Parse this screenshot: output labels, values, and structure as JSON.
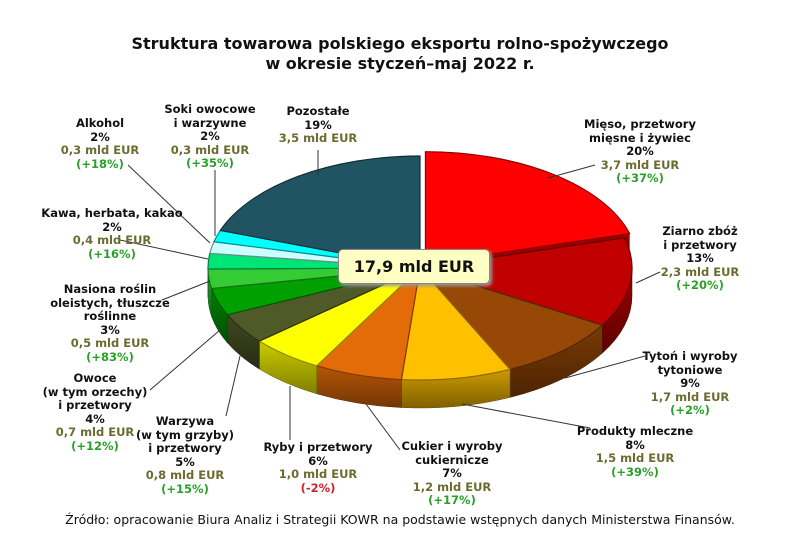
{
  "chart_data": {
    "type": "pie",
    "title": "Struktura towarowa polskiego eksportu rolno-spożywczego",
    "subtitle": "w okresie styczeń–maj 2022 r.",
    "total_label": "17,9 mld EUR",
    "unit": "mld EUR",
    "three_d": true,
    "slices": [
      {
        "name": "Mięso, przetwory mięsne i żywiec",
        "lines": [
          "Mięso, przetwory",
          "mięsne i żywiec"
        ],
        "percent": "20%",
        "value": 3.7,
        "value_label": "3,7 mld EUR",
        "change": "(+37%)",
        "color": "#ff0000",
        "exploded": true
      },
      {
        "name": "Ziarno zbóż i przetwory",
        "lines": [
          "Ziarno zbóż",
          "i przetwory"
        ],
        "percent": "13%",
        "value": 2.3,
        "value_label": "2,3 mld EUR",
        "change": "(+20%)",
        "color": "#c00000"
      },
      {
        "name": "Tytoń i wyroby tytoniowe",
        "lines": [
          "Tytoń i wyroby",
          "tytoniowe"
        ],
        "percent": "9%",
        "value": 1.7,
        "value_label": "1,7 mld EUR",
        "change": "(+2%)",
        "color": "#984806"
      },
      {
        "name": "Produkty mleczne",
        "lines": [
          "Produkty mleczne"
        ],
        "percent": "8%",
        "value": 1.5,
        "value_label": "1,5 mld EUR",
        "change": "(+39%)",
        "color": "#ffc000"
      },
      {
        "name": "Cukier i wyroby cukiernicze",
        "lines": [
          "Cukier i wyroby",
          "cukiernicze"
        ],
        "percent": "7%",
        "value": 1.2,
        "value_label": "1,2 mld EUR",
        "change": "(+17%)",
        "color": "#e36c09"
      },
      {
        "name": "Ryby i przetwory",
        "lines": [
          "Ryby i przetwory"
        ],
        "percent": "6%",
        "value": 1.0,
        "value_label": "1,0 mld EUR",
        "change": "(-2%)",
        "color": "#ffff00",
        "negative": true
      },
      {
        "name": "Warzywa (w tym grzyby) i przetwory",
        "lines": [
          "Warzywa",
          "(w tym grzyby)",
          "i przetwory"
        ],
        "percent": "5%",
        "value": 0.8,
        "value_label": "0,8 mld EUR",
        "change": "(+15%)",
        "color": "#4f5a28"
      },
      {
        "name": "Owoce (w tym orzechy) i przetwory",
        "lines": [
          "Owoce",
          "(w tym orzechy)",
          "i przetwory"
        ],
        "percent": "4%",
        "value": 0.7,
        "value_label": "0,7 mld EUR",
        "change": "(+12%)",
        "color": "#00a000"
      },
      {
        "name": "Nasiona roślin oleistych, tłuszcze roślinne",
        "lines": [
          "Nasiona roślin",
          "oleistych, tłuszcze",
          "roślinne"
        ],
        "percent": "3%",
        "value": 0.5,
        "value_label": "0,5 mld EUR",
        "change": "(+83%)",
        "color": "#33cc33"
      },
      {
        "name": "Kawa, herbata, kakao",
        "lines": [
          "Kawa, herbata, kakao"
        ],
        "percent": "2%",
        "value": 0.4,
        "value_label": "0,4 mld EUR",
        "change": "(+16%)",
        "color": "#00e676"
      },
      {
        "name": "Alkohol",
        "lines": [
          "Alkohol"
        ],
        "percent": "2%",
        "value": 0.3,
        "value_label": "0,3 mld EUR",
        "change": "(+18%)",
        "color": "#ccffff"
      },
      {
        "name": "Soki owocowe i warzywne",
        "lines": [
          "Soki owocowe",
          "i warzywne"
        ],
        "percent": "2%",
        "value": 0.3,
        "value_label": "0,3 mld EUR",
        "change": "(+35%)",
        "color": "#00ffff"
      },
      {
        "name": "Pozostałe",
        "lines": [
          "Pozostałe"
        ],
        "percent": "19%",
        "value": 3.5,
        "value_label": "3,5 mld EUR",
        "change": "",
        "color": "#215462"
      }
    ]
  },
  "source": "Źródło: opracowanie Biura Analiz i Strategii KOWR na podstawie wstępnych danych Ministerstwa Finansów."
}
